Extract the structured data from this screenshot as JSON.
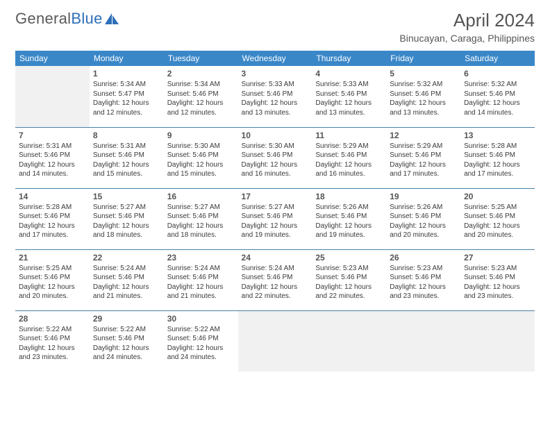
{
  "logo": {
    "text_gray": "General",
    "text_blue": "Blue"
  },
  "title": "April 2024",
  "location": "Binucayan, Caraga, Philippines",
  "colors": {
    "header_bg": "#3a87c8",
    "header_text": "#ffffff",
    "row_border": "#4a7fa8",
    "body_text": "#3a3a3a",
    "title_text": "#555555",
    "logo_gray": "#5a5a5a",
    "logo_blue": "#2d6fb8",
    "empty_bg": "#f1f1f1"
  },
  "columns": [
    "Sunday",
    "Monday",
    "Tuesday",
    "Wednesday",
    "Thursday",
    "Friday",
    "Saturday"
  ],
  "weeks": [
    [
      null,
      {
        "n": "1",
        "sr": "5:34 AM",
        "ss": "5:47 PM",
        "dl": "12 hours and 12 minutes."
      },
      {
        "n": "2",
        "sr": "5:34 AM",
        "ss": "5:46 PM",
        "dl": "12 hours and 12 minutes."
      },
      {
        "n": "3",
        "sr": "5:33 AM",
        "ss": "5:46 PM",
        "dl": "12 hours and 13 minutes."
      },
      {
        "n": "4",
        "sr": "5:33 AM",
        "ss": "5:46 PM",
        "dl": "12 hours and 13 minutes."
      },
      {
        "n": "5",
        "sr": "5:32 AM",
        "ss": "5:46 PM",
        "dl": "12 hours and 13 minutes."
      },
      {
        "n": "6",
        "sr": "5:32 AM",
        "ss": "5:46 PM",
        "dl": "12 hours and 14 minutes."
      }
    ],
    [
      {
        "n": "7",
        "sr": "5:31 AM",
        "ss": "5:46 PM",
        "dl": "12 hours and 14 minutes."
      },
      {
        "n": "8",
        "sr": "5:31 AM",
        "ss": "5:46 PM",
        "dl": "12 hours and 15 minutes."
      },
      {
        "n": "9",
        "sr": "5:30 AM",
        "ss": "5:46 PM",
        "dl": "12 hours and 15 minutes."
      },
      {
        "n": "10",
        "sr": "5:30 AM",
        "ss": "5:46 PM",
        "dl": "12 hours and 16 minutes."
      },
      {
        "n": "11",
        "sr": "5:29 AM",
        "ss": "5:46 PM",
        "dl": "12 hours and 16 minutes."
      },
      {
        "n": "12",
        "sr": "5:29 AM",
        "ss": "5:46 PM",
        "dl": "12 hours and 17 minutes."
      },
      {
        "n": "13",
        "sr": "5:28 AM",
        "ss": "5:46 PM",
        "dl": "12 hours and 17 minutes."
      }
    ],
    [
      {
        "n": "14",
        "sr": "5:28 AM",
        "ss": "5:46 PM",
        "dl": "12 hours and 17 minutes."
      },
      {
        "n": "15",
        "sr": "5:27 AM",
        "ss": "5:46 PM",
        "dl": "12 hours and 18 minutes."
      },
      {
        "n": "16",
        "sr": "5:27 AM",
        "ss": "5:46 PM",
        "dl": "12 hours and 18 minutes."
      },
      {
        "n": "17",
        "sr": "5:27 AM",
        "ss": "5:46 PM",
        "dl": "12 hours and 19 minutes."
      },
      {
        "n": "18",
        "sr": "5:26 AM",
        "ss": "5:46 PM",
        "dl": "12 hours and 19 minutes."
      },
      {
        "n": "19",
        "sr": "5:26 AM",
        "ss": "5:46 PM",
        "dl": "12 hours and 20 minutes."
      },
      {
        "n": "20",
        "sr": "5:25 AM",
        "ss": "5:46 PM",
        "dl": "12 hours and 20 minutes."
      }
    ],
    [
      {
        "n": "21",
        "sr": "5:25 AM",
        "ss": "5:46 PM",
        "dl": "12 hours and 20 minutes."
      },
      {
        "n": "22",
        "sr": "5:24 AM",
        "ss": "5:46 PM",
        "dl": "12 hours and 21 minutes."
      },
      {
        "n": "23",
        "sr": "5:24 AM",
        "ss": "5:46 PM",
        "dl": "12 hours and 21 minutes."
      },
      {
        "n": "24",
        "sr": "5:24 AM",
        "ss": "5:46 PM",
        "dl": "12 hours and 22 minutes."
      },
      {
        "n": "25",
        "sr": "5:23 AM",
        "ss": "5:46 PM",
        "dl": "12 hours and 22 minutes."
      },
      {
        "n": "26",
        "sr": "5:23 AM",
        "ss": "5:46 PM",
        "dl": "12 hours and 23 minutes."
      },
      {
        "n": "27",
        "sr": "5:23 AM",
        "ss": "5:46 PM",
        "dl": "12 hours and 23 minutes."
      }
    ],
    [
      {
        "n": "28",
        "sr": "5:22 AM",
        "ss": "5:46 PM",
        "dl": "12 hours and 23 minutes."
      },
      {
        "n": "29",
        "sr": "5:22 AM",
        "ss": "5:46 PM",
        "dl": "12 hours and 24 minutes."
      },
      {
        "n": "30",
        "sr": "5:22 AM",
        "ss": "5:46 PM",
        "dl": "12 hours and 24 minutes."
      },
      null,
      null,
      null,
      null
    ]
  ],
  "labels": {
    "sunrise": "Sunrise:",
    "sunset": "Sunset:",
    "daylight": "Daylight:"
  }
}
